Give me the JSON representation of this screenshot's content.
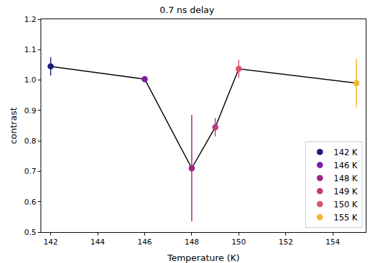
{
  "chart_data": {
    "type": "scatter",
    "title": "0.7 ns delay",
    "x_label": "Temperature (K)",
    "y_label": "contrast",
    "color": "#000000",
    "marker": "circle",
    "legend": "lower right",
    "grid": false,
    "xlim": [
      141.6,
      155.4
    ],
    "xticks": [
      142,
      144,
      146,
      148,
      150,
      152,
      154
    ],
    "ylim": [
      0.5,
      1.2
    ],
    "yticks": [
      0.5,
      0.6,
      0.7,
      0.8,
      0.9,
      {
        "value": 1,
        "label": "1.0"
      },
      1.1,
      1.2
    ],
    "series": [
      {
        "name": "142 K",
        "color": "#1b1a78",
        "x": [
          142
        ],
        "values": [
          1.045
        ],
        "error": [
          0.03
        ]
      },
      {
        "name": "146 K",
        "color": "#7a1fa2",
        "x": [
          146
        ],
        "values": [
          1.003
        ],
        "error": [
          0.01
        ]
      },
      {
        "name": "148 K",
        "color": "#a3237f",
        "x": [
          148
        ],
        "values": [
          0.71
        ],
        "error": [
          0.175
        ]
      },
      {
        "name": "149 K",
        "color": "#c13a7c",
        "x": [
          149
        ],
        "values": [
          0.845
        ],
        "error": [
          0.03
        ]
      },
      {
        "name": "150 K",
        "color": "#d9556b",
        "x": [
          150
        ],
        "values": [
          1.037
        ],
        "error": [
          0.03
        ]
      },
      {
        "name": "155 K",
        "color": "#f2b52c",
        "x": [
          155
        ],
        "values": [
          0.99
        ],
        "error": [
          0.08
        ]
      }
    ]
  }
}
